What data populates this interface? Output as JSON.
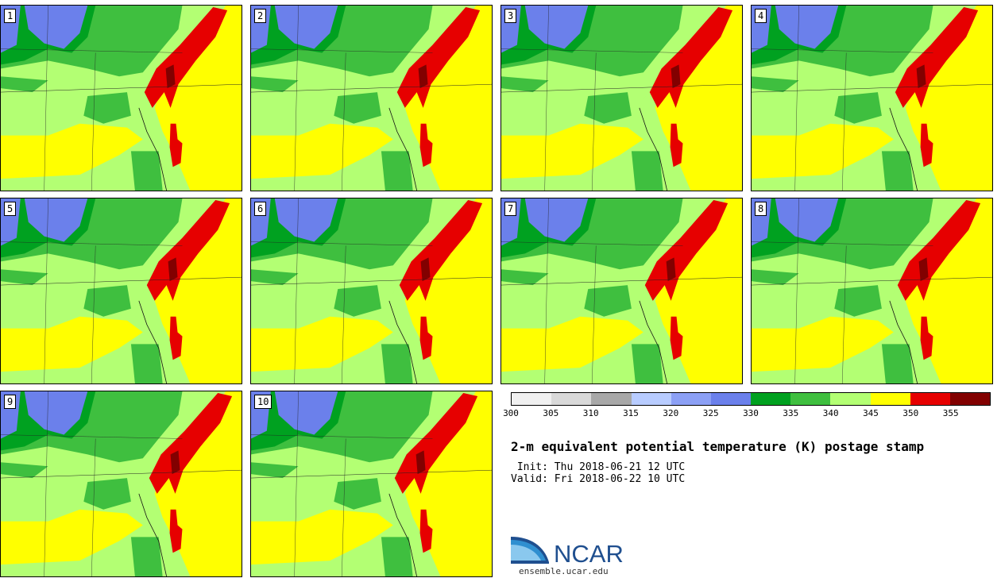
{
  "members": [
    "1",
    "2",
    "3",
    "4",
    "5",
    "6",
    "7",
    "8",
    "9",
    "10"
  ],
  "colorbar": {
    "colors": [
      "#f0f0f0",
      "#d9d9d9",
      "#a8a8a8",
      "#b8ccff",
      "#8ca0f5",
      "#6b80eb",
      "#00a120",
      "#3fbf3f",
      "#b3ff73",
      "#ffff00",
      "#e60000",
      "#820000"
    ],
    "ticks": [
      "300",
      "305",
      "310",
      "315",
      "320",
      "325",
      "330",
      "335",
      "340",
      "345",
      "350",
      "355"
    ]
  },
  "title": "2-m equivalent potential temperature (K) postage stamp",
  "init": " Init: Thu 2018-06-21 12 UTC",
  "valid": "Valid: Fri 2018-06-22 10 UTC",
  "logo": {
    "text": "NCAR",
    "subtitle": "ensemble.ucar.edu"
  },
  "map_colors": {
    "ocean": "#b3ff73",
    "yellow": "#ffff00",
    "red": "#e60000",
    "darkred": "#820000",
    "green": "#3fbf3f",
    "darkgreen": "#00a120",
    "blue": "#6b80eb"
  }
}
